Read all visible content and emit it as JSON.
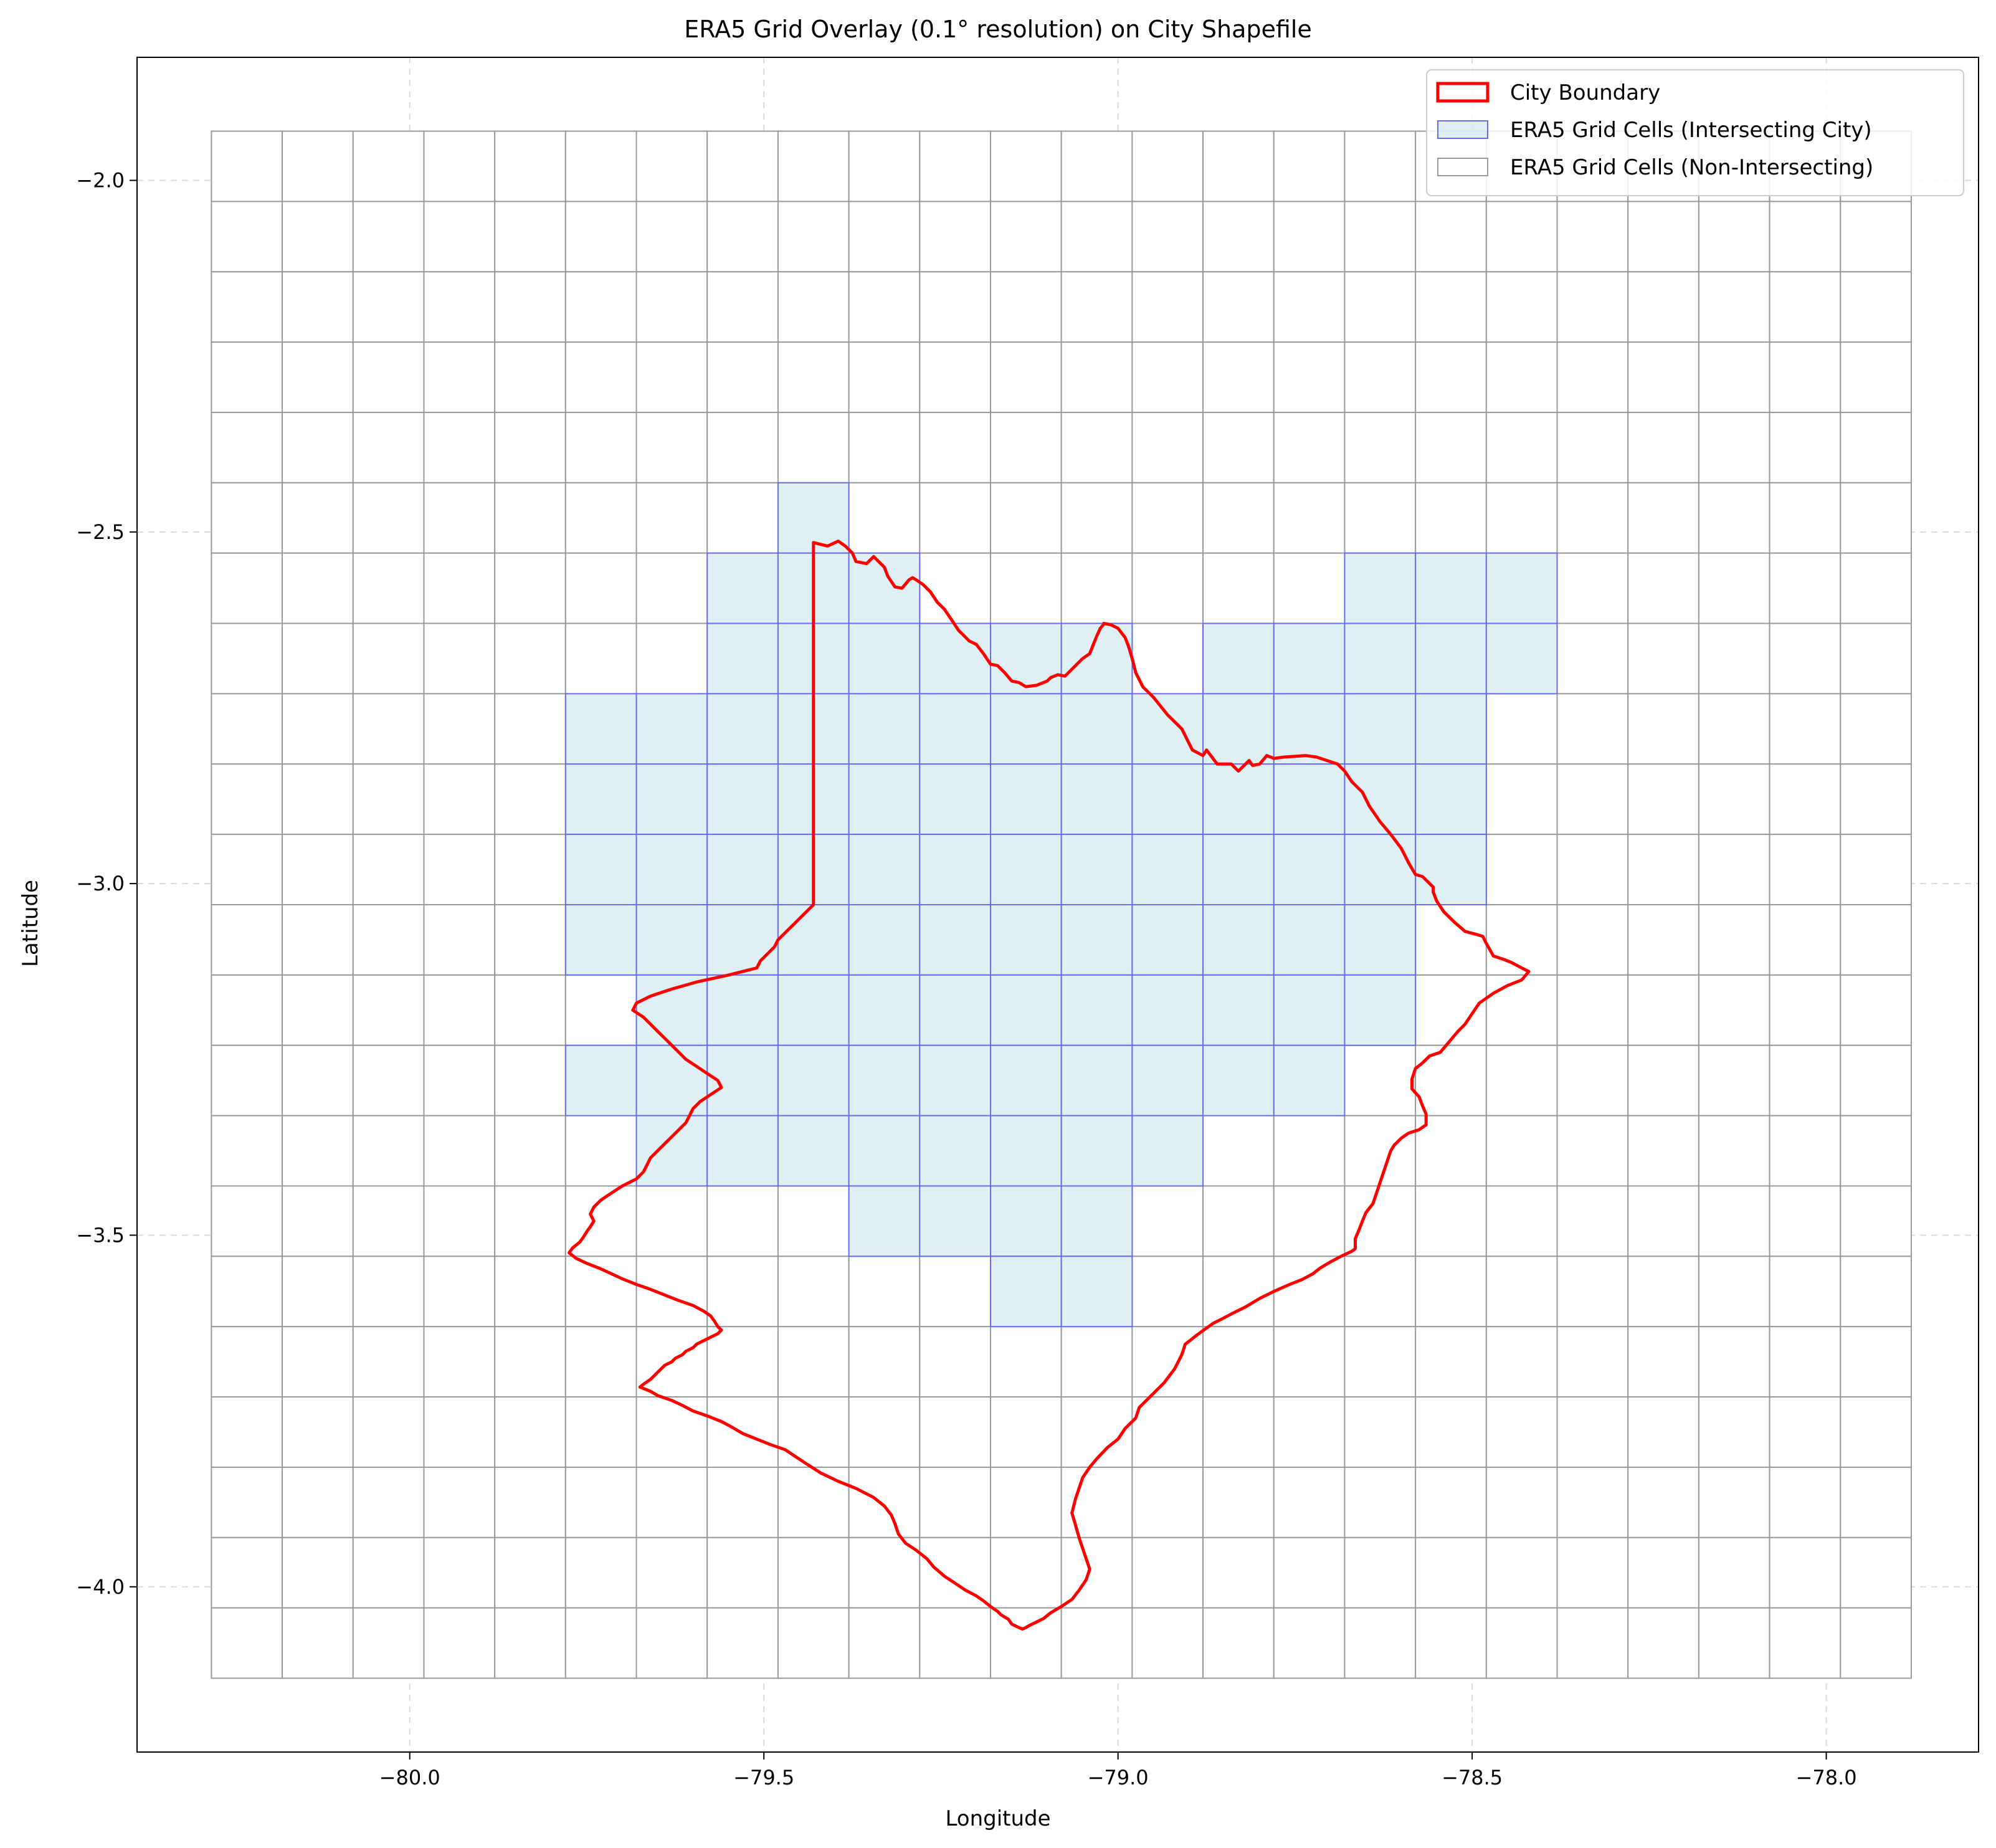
{
  "chart_data": {
    "type": "map",
    "title": "ERA5 Grid Overlay (0.1° resolution) on City Shapefile",
    "xlabel": "Longitude",
    "ylabel": "Latitude",
    "xlim": [
      -80.385,
      -77.785
    ],
    "ylim": [
      -4.235,
      -1.825
    ],
    "x_ticks": [
      -80.0,
      -79.5,
      -79.0,
      -78.5,
      -78.0
    ],
    "x_tick_labels": [
      "−80.0",
      "−79.5",
      "−79.0",
      "−78.5",
      "−78.0"
    ],
    "y_ticks": [
      -2.0,
      -2.5,
      -3.0,
      -3.5,
      -4.0
    ],
    "y_tick_labels": [
      "−2.0",
      "−2.5",
      "−3.0",
      "−3.5",
      "−4.0"
    ],
    "grid": true,
    "legend_position": "top-right",
    "legend": [
      {
        "label": "City Boundary",
        "style": "line",
        "color": "#ff0000"
      },
      {
        "label": "ERA5 Grid Cells (Intersecting City)",
        "style": "patch",
        "color": "#6b6bf0",
        "fill": "#add8e6"
      },
      {
        "label": "ERA5 Grid Cells (Non-Intersecting)",
        "style": "patch",
        "color": "#9a9a9a",
        "fill": "#ffffff"
      }
    ],
    "grid_cells": {
      "resolution_deg": 0.1,
      "lon_edges": [
        -80.28,
        -80.18,
        -80.08,
        -79.98,
        -79.88,
        -79.78,
        -79.68,
        -79.58,
        -79.48,
        -79.38,
        -79.28,
        -79.18,
        -79.08,
        -78.98,
        -78.88,
        -78.78,
        -78.68,
        -78.58,
        -78.48,
        -78.38,
        -78.28,
        -78.18,
        -78.08,
        -77.98,
        -77.88
      ],
      "lat_edges": [
        -1.93,
        -2.03,
        -2.13,
        -2.23,
        -2.33,
        -2.43,
        -2.53,
        -2.63,
        -2.73,
        -2.83,
        -2.93,
        -3.03,
        -3.13,
        -3.23,
        -3.33,
        -3.43,
        -3.53,
        -3.63,
        -3.73,
        -3.83,
        -3.93,
        -4.03,
        -4.13
      ],
      "intersecting_cells_by_row": [
        {
          "lat_top": -2.43,
          "lat_bottom": -2.53,
          "lon_min": [
            -79.48
          ]
        },
        {
          "lat_top": -2.53,
          "lat_bottom": -2.63,
          "lon_min": [
            -79.58,
            -79.48,
            -79.38,
            -78.68,
            -78.58,
            -78.48
          ]
        },
        {
          "lat_top": -2.63,
          "lat_bottom": -2.73,
          "lon_min": [
            -79.58,
            -79.48,
            -79.38,
            -79.28,
            -79.18,
            -79.08,
            -78.88,
            -78.78,
            -78.68,
            -78.58,
            -78.48
          ]
        },
        {
          "lat_top": -2.73,
          "lat_bottom": -2.83,
          "lon_min": [
            -79.78,
            -79.68,
            -79.58,
            -79.48,
            -79.38,
            -79.28,
            -79.18,
            -79.08,
            -78.98,
            -78.88,
            -78.78,
            -78.68,
            -78.58
          ]
        },
        {
          "lat_top": -2.83,
          "lat_bottom": -2.93,
          "lon_min": [
            -79.78,
            -79.68,
            -79.58,
            -79.48,
            -79.38,
            -79.28,
            -79.18,
            -79.08,
            -78.98,
            -78.88,
            -78.78,
            -78.68,
            -78.58
          ]
        },
        {
          "lat_top": -2.93,
          "lat_bottom": -3.03,
          "lon_min": [
            -79.78,
            -79.68,
            -79.58,
            -79.48,
            -79.38,
            -79.28,
            -79.18,
            -79.08,
            -78.98,
            -78.88,
            -78.78,
            -78.68,
            -78.58
          ]
        },
        {
          "lat_top": -3.03,
          "lat_bottom": -3.13,
          "lon_min": [
            -79.78,
            -79.68,
            -79.58,
            -79.48,
            -79.38,
            -79.28,
            -79.18,
            -79.08,
            -78.98,
            -78.88,
            -78.78,
            -78.68
          ]
        },
        {
          "lat_top": -3.13,
          "lat_bottom": -3.23,
          "lon_min": [
            -79.68,
            -79.58,
            -79.48,
            -79.38,
            -79.28,
            -79.18,
            -79.08,
            -78.98,
            -78.88,
            -78.78,
            -78.68
          ]
        },
        {
          "lat_top": -3.23,
          "lat_bottom": -3.33,
          "lon_min": [
            -79.78,
            -79.68,
            -79.58,
            -79.48,
            -79.38,
            -79.28,
            -79.18,
            -79.08,
            -78.98,
            -78.88,
            -78.78
          ]
        },
        {
          "lat_top": -3.33,
          "lat_bottom": -3.43,
          "lon_min": [
            -79.68,
            -79.58,
            -79.48,
            -79.38,
            -79.28,
            -79.18,
            -79.08,
            -78.98
          ]
        },
        {
          "lat_top": -3.43,
          "lat_bottom": -3.53,
          "lon_min": [
            -79.38,
            -79.28,
            -79.18,
            -79.08
          ]
        },
        {
          "lat_top": -3.53,
          "lat_bottom": -3.63,
          "lon_min": [
            -79.18,
            -79.08
          ]
        }
      ]
    },
    "city_boundary": {
      "lon": [
        -79.43,
        -79.41,
        -79.395,
        -79.385,
        -79.375,
        -79.37,
        -79.355,
        -79.345,
        -79.33,
        -79.325,
        -79.315,
        -79.305,
        -79.295,
        -79.29,
        -79.285,
        -79.275,
        -79.265,
        -79.255,
        -79.245,
        -79.235,
        -79.225,
        -79.215,
        -79.21,
        -79.2,
        -79.19,
        -79.18,
        -79.17,
        -79.16,
        -79.15,
        -79.14,
        -79.13,
        -79.115,
        -79.1,
        -79.095,
        -79.085,
        -79.075,
        -79.07,
        -79.06,
        -79.05,
        -79.04,
        -79.03,
        -79.025,
        -79.02,
        -79.02,
        -79.01,
        -79.0,
        -78.99,
        -78.985,
        -78.98,
        -78.975,
        -78.965,
        -78.95,
        -78.93,
        -78.91,
        -78.895,
        -78.88,
        -78.875,
        -78.86,
        -78.84,
        -78.83,
        -78.82,
        -78.815,
        -78.81,
        -78.8,
        -78.79,
        -78.78,
        -78.765,
        -78.75,
        -78.735,
        -78.72,
        -78.705,
        -78.69,
        -78.68,
        -78.67,
        -78.655,
        -78.645,
        -78.63,
        -78.615,
        -78.6,
        -78.59,
        -78.58,
        -78.57,
        -78.565,
        -78.555,
        -78.555,
        -78.55,
        -78.54,
        -78.525,
        -78.51,
        -78.495,
        -78.485,
        -78.48,
        -78.47,
        -78.455,
        -78.445,
        -78.43,
        -78.42,
        -78.43,
        -78.45,
        -78.47,
        -78.49,
        -78.5,
        -78.51,
        -78.52,
        -78.535,
        -78.545,
        -78.56,
        -78.57,
        -78.58,
        -78.585,
        -78.585,
        -78.575,
        -78.57,
        -78.565,
        -78.565,
        -78.575,
        -78.59,
        -78.6,
        -78.61,
        -78.615,
        -78.62,
        -78.625,
        -78.63,
        -78.635,
        -78.64,
        -78.65,
        -78.655,
        -78.66,
        -78.665,
        -78.665,
        -78.665,
        -78.67,
        -78.685,
        -78.7,
        -78.715,
        -78.725,
        -78.74,
        -78.76,
        -78.78,
        -78.8,
        -78.82,
        -78.84,
        -78.855,
        -78.865,
        -78.875,
        -78.89,
        -78.905,
        -78.91,
        -78.92,
        -78.935,
        -78.95,
        -78.97,
        -78.975,
        -78.99,
        -79.0,
        -79.015,
        -79.03,
        -79.04,
        -79.05,
        -79.055,
        -79.06,
        -79.065,
        -79.06,
        -79.055,
        -79.05,
        -79.045,
        -79.04,
        -79.045,
        -79.055,
        -79.065,
        -79.08,
        -79.095,
        -79.105,
        -79.115,
        -79.125,
        -79.13,
        -79.135,
        -79.14,
        -79.15,
        -79.155,
        -79.165,
        -79.17,
        -79.18,
        -79.19,
        -79.2,
        -79.215,
        -79.23,
        -79.245,
        -79.26,
        -79.27,
        -79.285,
        -79.3,
        -79.31,
        -79.315,
        -79.32,
        -79.33,
        -79.345,
        -79.37,
        -79.395,
        -79.42,
        -79.44,
        -79.455,
        -79.47,
        -79.49,
        -79.51,
        -79.53,
        -79.545,
        -79.56,
        -79.58,
        -79.6,
        -79.615,
        -79.63,
        -79.65,
        -79.66,
        -79.675,
        -79.67,
        -79.66,
        -79.65,
        -79.645,
        -79.64,
        -79.63,
        -79.625,
        -79.615,
        -79.61,
        -79.6,
        -79.595,
        -79.585,
        -79.575,
        -79.565,
        -79.56,
        -79.565,
        -79.57,
        -79.575,
        -79.585,
        -79.6,
        -79.62,
        -79.64,
        -79.66,
        -79.68,
        -79.7,
        -79.715,
        -79.73,
        -79.75,
        -79.765,
        -79.775,
        -79.77,
        -79.76,
        -79.755,
        -79.75,
        -79.745,
        -79.74,
        -79.745,
        -79.74,
        -79.73,
        -79.715,
        -79.7,
        -79.68,
        -79.67,
        -79.665,
        -79.66,
        -79.65,
        -79.64,
        -79.63,
        -79.62,
        -79.61,
        -79.605,
        -79.6,
        -79.59,
        -79.575,
        -79.56,
        -79.565,
        -79.58,
        -79.595,
        -79.61,
        -79.62,
        -79.63,
        -79.64,
        -79.65,
        -79.66,
        -79.67,
        -79.685,
        -79.68,
        -79.66,
        -79.63,
        -79.595,
        -79.55,
        -79.51,
        -79.505,
        -79.495,
        -79.485,
        -79.48,
        -79.47,
        -79.46,
        -79.45,
        -79.44,
        -79.43
      ],
      "lat": [
        -2.515,
        -2.52,
        -2.513,
        -2.52,
        -2.53,
        -2.542,
        -2.545,
        -2.535,
        -2.55,
        -2.563,
        -2.578,
        -2.58,
        -2.568,
        -2.565,
        -2.568,
        -2.575,
        -2.585,
        -2.6,
        -2.61,
        -2.625,
        -2.64,
        -2.65,
        -2.655,
        -2.66,
        -2.673,
        -2.688,
        -2.69,
        -2.7,
        -2.712,
        -2.714,
        -2.72,
        -2.718,
        -2.712,
        -2.707,
        -2.703,
        -2.705,
        -2.7,
        -2.69,
        -2.68,
        -2.673,
        -2.648,
        -2.637,
        -2.631,
        -2.63,
        -2.632,
        -2.637,
        -2.65,
        -2.663,
        -2.68,
        -2.7,
        -2.72,
        -2.735,
        -2.76,
        -2.78,
        -2.81,
        -2.818,
        -2.81,
        -2.83,
        -2.83,
        -2.84,
        -2.83,
        -2.825,
        -2.832,
        -2.83,
        -2.818,
        -2.822,
        -2.82,
        -2.819,
        -2.818,
        -2.82,
        -2.825,
        -2.83,
        -2.84,
        -2.855,
        -2.87,
        -2.89,
        -2.912,
        -2.93,
        -2.95,
        -2.97,
        -2.987,
        -2.99,
        -2.995,
        -3.005,
        -3.012,
        -3.025,
        -3.04,
        -3.055,
        -3.068,
        -3.072,
        -3.075,
        -3.085,
        -3.103,
        -3.108,
        -3.112,
        -3.12,
        -3.125,
        -3.137,
        -3.145,
        -3.156,
        -3.17,
        -3.185,
        -3.2,
        -3.21,
        -3.228,
        -3.24,
        -3.245,
        -3.255,
        -3.263,
        -3.278,
        -3.292,
        -3.303,
        -3.316,
        -3.328,
        -3.343,
        -3.35,
        -3.355,
        -3.362,
        -3.372,
        -3.38,
        -3.395,
        -3.41,
        -3.425,
        -3.44,
        -3.455,
        -3.468,
        -3.48,
        -3.493,
        -3.505,
        -3.512,
        -3.519,
        -3.523,
        -3.53,
        -3.538,
        -3.547,
        -3.555,
        -3.563,
        -3.571,
        -3.58,
        -3.59,
        -3.602,
        -3.612,
        -3.62,
        -3.625,
        -3.632,
        -3.643,
        -3.655,
        -3.67,
        -3.69,
        -3.71,
        -3.725,
        -3.745,
        -3.76,
        -3.775,
        -3.79,
        -3.802,
        -3.818,
        -3.83,
        -3.845,
        -3.86,
        -3.875,
        -3.895,
        -3.912,
        -3.93,
        -3.945,
        -3.96,
        -3.975,
        -3.99,
        -4.005,
        -4.018,
        -4.028,
        -4.037,
        -4.045,
        -4.05,
        -4.055,
        -4.058,
        -4.06,
        -4.058,
        -4.053,
        -4.046,
        -4.04,
        -4.035,
        -4.028,
        -4.02,
        -4.013,
        -4.005,
        -3.995,
        -3.985,
        -3.972,
        -3.96,
        -3.948,
        -3.938,
        -3.925,
        -3.91,
        -3.898,
        -3.885,
        -3.873,
        -3.86,
        -3.85,
        -3.838,
        -3.825,
        -3.815,
        -3.805,
        -3.798,
        -3.79,
        -3.782,
        -3.773,
        -3.765,
        -3.757,
        -3.75,
        -3.742,
        -3.735,
        -3.728,
        -3.722,
        -3.716,
        -3.712,
        -3.705,
        -3.695,
        -3.69,
        -3.685,
        -3.68,
        -3.675,
        -3.67,
        -3.665,
        -3.66,
        -3.655,
        -3.65,
        -3.645,
        -3.64,
        -3.635,
        -3.63,
        -3.622,
        -3.615,
        -3.608,
        -3.6,
        -3.593,
        -3.585,
        -3.577,
        -3.57,
        -3.562,
        -3.555,
        -3.548,
        -3.54,
        -3.533,
        -3.525,
        -3.518,
        -3.51,
        -3.503,
        -3.495,
        -3.488,
        -3.48,
        -3.47,
        -3.46,
        -3.45,
        -3.44,
        -3.43,
        -3.42,
        -3.41,
        -3.4,
        -3.39,
        -3.38,
        -3.37,
        -3.36,
        -3.35,
        -3.34,
        -3.33,
        -3.32,
        -3.31,
        -3.3,
        -3.29,
        -3.28,
        -3.27,
        -3.26,
        -3.25,
        -3.24,
        -3.23,
        -3.22,
        -3.21,
        -3.2,
        -3.19,
        -3.18,
        -3.17,
        -3.16,
        -3.15,
        -3.14,
        -3.13,
        -3.12,
        -3.11,
        -3.1,
        -3.09,
        -3.08,
        -3.07,
        -3.06,
        -3.05,
        -3.04,
        -3.03,
        -3.02,
        -3.01,
        -3.0,
        -2.99,
        -2.98,
        -2.97,
        -2.96,
        -2.95,
        -2.94,
        -2.93,
        -2.92,
        -2.91,
        -2.9,
        -2.89,
        -2.88,
        -2.87,
        -2.86,
        -2.85,
        -2.84
      ]
    }
  }
}
